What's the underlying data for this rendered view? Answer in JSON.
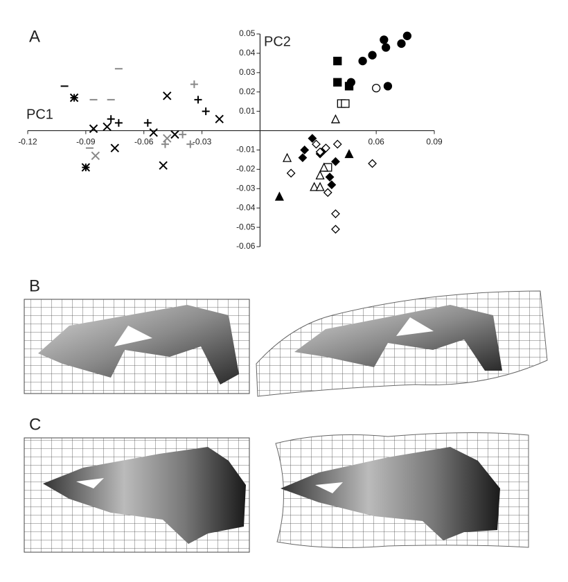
{
  "panel_labels": [
    "A",
    "B",
    "C"
  ],
  "chart_data": {
    "type": "scatter",
    "x_label": "PC1",
    "y_label": "PC2",
    "xlim": [
      -0.12,
      0.09
    ],
    "xticks": [
      -0.12,
      -0.09,
      -0.06,
      -0.03,
      0.06,
      0.09
    ],
    "ylim": [
      -0.06,
      0.05
    ],
    "yticks": [
      0.05,
      0.04,
      0.03,
      0.02,
      0.01,
      -0.01,
      -0.02,
      -0.03,
      -0.04,
      -0.05,
      -0.06
    ],
    "series": [
      {
        "marker": "circle",
        "filled": true,
        "color": "#000000",
        "x": [
          0.064,
          0.065,
          0.073,
          0.058,
          0.053,
          0.076,
          0.047,
          0.066
        ],
        "values": [
          0.047,
          0.043,
          0.045,
          0.039,
          0.036,
          0.049,
          0.025,
          0.023
        ]
      },
      {
        "marker": "circle",
        "filled": false,
        "color": "#000000",
        "x": [
          0.06
        ],
        "values": [
          0.022
        ]
      },
      {
        "marker": "square",
        "filled": true,
        "color": "#000000",
        "x": [
          0.04,
          0.04,
          0.046
        ],
        "values": [
          0.036,
          0.025,
          0.023
        ]
      },
      {
        "marker": "square",
        "filled": false,
        "color": "#000000",
        "x": [
          0.042,
          0.044,
          0.035
        ],
        "values": [
          0.014,
          0.014,
          -0.019
        ]
      },
      {
        "marker": "diamond",
        "filled": true,
        "color": "#000000",
        "x": [
          0.023,
          0.022,
          0.027,
          0.031,
          0.039,
          0.037,
          0.036,
          0.033
        ],
        "values": [
          -0.01,
          -0.014,
          -0.004,
          -0.012,
          -0.016,
          -0.028,
          -0.024,
          -0.01
        ]
      },
      {
        "marker": "diamond",
        "filled": false,
        "color": "#000000",
        "x": [
          0.029,
          0.034,
          0.04,
          0.016,
          0.035,
          0.039,
          0.039,
          0.058,
          0.031
        ],
        "values": [
          -0.007,
          -0.009,
          -0.007,
          -0.022,
          -0.032,
          -0.043,
          -0.051,
          -0.017,
          -0.011
        ]
      },
      {
        "marker": "triangle",
        "filled": false,
        "color": "#000000",
        "x": [
          0.039,
          0.014,
          0.031,
          0.028,
          0.031,
          0.033
        ],
        "values": [
          0.006,
          -0.014,
          -0.023,
          -0.029,
          -0.029,
          -0.019
        ]
      },
      {
        "marker": "triangle",
        "filled": true,
        "color": "#000000",
        "x": [
          0.046,
          0.01
        ],
        "values": [
          -0.012,
          -0.034
        ]
      },
      {
        "marker": "x",
        "filled": false,
        "color": "#000000",
        "x": [
          -0.048,
          -0.021,
          -0.05,
          -0.075,
          -0.079,
          -0.086,
          -0.055,
          -0.044
        ],
        "values": [
          0.018,
          0.006,
          -0.018,
          -0.009,
          0.002,
          0.001,
          -0.001,
          -0.002
        ]
      },
      {
        "marker": "x",
        "filled": false,
        "color": "#888888",
        "x": [
          -0.085,
          -0.048,
          -0.096
        ],
        "values": [
          -0.013,
          -0.004,
          0.017
        ]
      },
      {
        "marker": "plus",
        "filled": false,
        "color": "#000000",
        "x": [
          -0.077,
          -0.058,
          -0.032,
          -0.028,
          -0.073
        ],
        "values": [
          0.006,
          0.004,
          0.016,
          0.01,
          0.004
        ]
      },
      {
        "marker": "plus",
        "filled": false,
        "color": "#888888",
        "x": [
          -0.034,
          -0.036,
          -0.049,
          -0.04
        ],
        "values": [
          0.024,
          -0.007,
          -0.007,
          -0.002
        ]
      },
      {
        "marker": "dash",
        "filled": false,
        "color": "#888888",
        "x": [
          -0.073,
          -0.086,
          -0.077,
          -0.088
        ],
        "values": [
          0.032,
          0.016,
          0.016,
          -0.009
        ]
      },
      {
        "marker": "dash",
        "filled": false,
        "color": "#000000",
        "x": [
          -0.101
        ],
        "values": [
          0.023
        ]
      },
      {
        "marker": "asterisk",
        "filled": false,
        "color": "#000000",
        "x": [
          -0.096,
          -0.09
        ],
        "values": [
          0.017,
          -0.019
        ]
      }
    ]
  }
}
